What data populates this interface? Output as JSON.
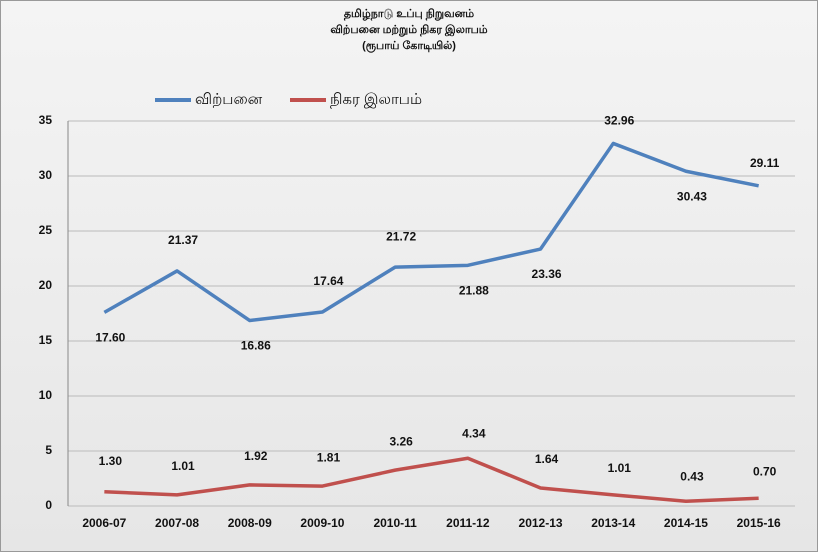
{
  "chart_data": {
    "type": "line",
    "title": [
      "தமிழ்நாடு உப்பு நிறுவனம்",
      "விற்பனை மற்றும் நிகர இலாபம்"
    ],
    "subtitle": "(ரூபாய் கோடியில்)",
    "categories": [
      "2006-07",
      "2007-08",
      "2008-09",
      "2009-10",
      "2010-11",
      "2011-12",
      "2012-13",
      "2013-14",
      "2014-15",
      "2015-16"
    ],
    "series": [
      {
        "name": "விற்பனை",
        "color": "#4f81bd",
        "values": [
          17.6,
          21.37,
          16.86,
          17.64,
          21.72,
          21.88,
          23.36,
          32.96,
          30.43,
          29.11
        ],
        "value_labels": [
          "17.60",
          "21.37",
          "16.86",
          "17.64",
          "21.72",
          "21.88",
          "23.36",
          "32.96",
          "30.43",
          "29.11"
        ]
      },
      {
        "name": "நிகர இலாபம்",
        "color": "#c0504d",
        "values": [
          1.3,
          1.01,
          1.92,
          1.81,
          3.26,
          4.34,
          1.64,
          1.01,
          0.43,
          0.7
        ],
        "value_labels": [
          "1.30",
          "1.01",
          "1.92",
          "1.81",
          "3.26",
          "4.34",
          "1.64",
          "1.01",
          "0.43",
          "0.70"
        ]
      }
    ],
    "ylim": [
      0,
      35
    ],
    "yticks": [
      0,
      5,
      10,
      15,
      20,
      25,
      30,
      35
    ],
    "grid": true,
    "legend": "top"
  }
}
